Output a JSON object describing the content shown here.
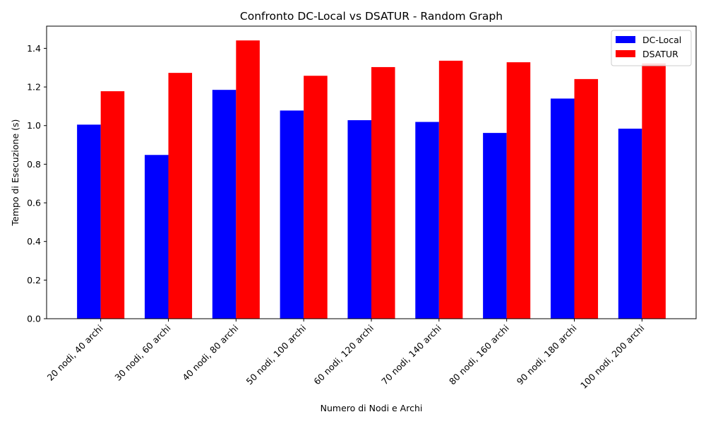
{
  "chart_data": {
    "type": "bar",
    "title": "Confronto DC-Local vs DSATUR - Random Graph",
    "xlabel": "Numero di Nodi e Archi",
    "ylabel": "Tempo di Esecuzione (s)",
    "ylim": [
      0,
      1.515
    ],
    "yticks": [
      0.0,
      0.2,
      0.4,
      0.6,
      0.8,
      1.0,
      1.2,
      1.4
    ],
    "ytick_labels": [
      "0.0",
      "0.2",
      "0.4",
      "0.6",
      "0.8",
      "1.0",
      "1.2",
      "1.4"
    ],
    "categories": [
      "20 nodi, 40 archi",
      "30 nodi, 60 archi",
      "40 nodi, 80 archi",
      "50 nodi, 100 archi",
      "60 nodi, 120 archi",
      "70 nodi, 140 archi",
      "80 nodi, 160 archi",
      "90 nodi, 180 archi",
      "100 nodi, 200 archi"
    ],
    "series": [
      {
        "name": "DC-Local",
        "color": "#0000ff",
        "values": [
          1.005,
          0.848,
          1.185,
          1.078,
          1.028,
          1.019,
          0.962,
          1.14,
          0.984
        ]
      },
      {
        "name": "DSATUR",
        "color": "#ff0000",
        "values": [
          1.178,
          1.273,
          1.441,
          1.258,
          1.303,
          1.336,
          1.328,
          1.241,
          1.322
        ]
      }
    ],
    "legend": {
      "location": "top-right",
      "entries": [
        "DC-Local",
        "DSATUR"
      ]
    },
    "grid": false
  }
}
